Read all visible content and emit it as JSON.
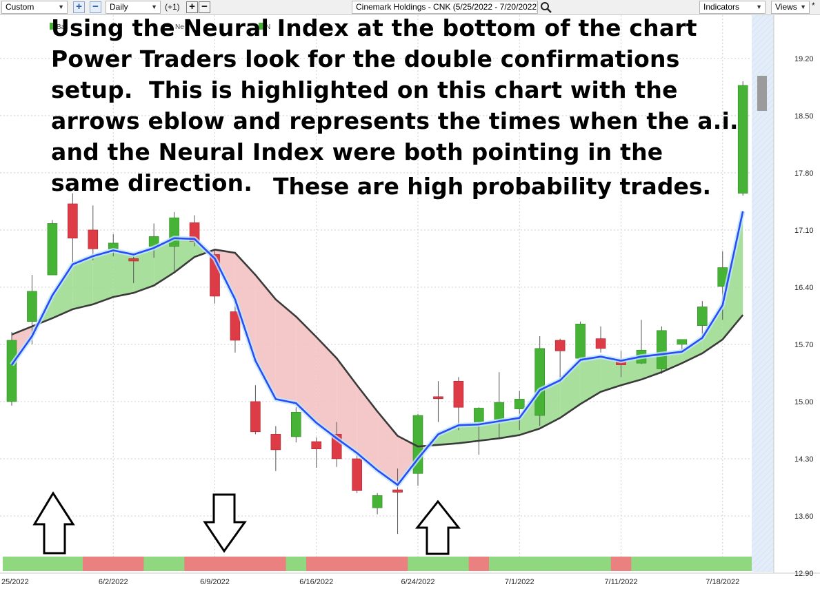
{
  "toolbar": {
    "range_value": "Custom",
    "interval_value": "Daily",
    "shift_label": "(+1)",
    "symbol_field": "Cinemark Holdings - CNK (5/25/2022 - 7/20/2022)",
    "indicators_label": "Indicators",
    "views_label": "Views",
    "views_marker": "*"
  },
  "annotation": {
    "main_text": "Using the Neural Index at the bottom of the chart\nPower Traders look for the double confirmations\nsetup.  This is highlighted on this chart with the\narrows eblow and represents the times when the a.i.\nand the Neural Index were both pointing in the\nsame direction.",
    "probability_text": "These are high probability trades."
  },
  "legend_fragments": [
    "Ba",
    "Ne",
    "N"
  ],
  "colors": {
    "up_candle": "#46b336",
    "down_candle": "#dd3b46",
    "predicted_line": "#2a4cf5",
    "moving_average": "#3a3a3a",
    "bull_fill": "#9fdb92",
    "bear_fill": "#f3c2c2",
    "neural_up": "#8fd87f",
    "neural_down": "#ea8080",
    "right_panel": "#e3edf9"
  },
  "icons": [
    "search-icon",
    "plus-icon",
    "minus-icon",
    "up-arrow-icon",
    "down-arrow-icon"
  ],
  "chart_data": {
    "type": "candlestick",
    "symbol": "CNK",
    "ylim": [
      12.9,
      19.55
    ],
    "y_ticks": [
      "19.20",
      "18.50",
      "17.80",
      "17.10",
      "16.40",
      "15.70",
      "15.00",
      "14.30",
      "13.60",
      "12.90"
    ],
    "x_ticks": [
      "25/2022",
      "6/2/2022",
      "6/9/2022",
      "6/16/2022",
      "6/24/2022",
      "7/1/2022",
      "7/11/2022",
      "7/18/2022"
    ],
    "grid": true,
    "candles": [
      {
        "o": 15.0,
        "c": 15.75,
        "h": 15.85,
        "l": 14.95
      },
      {
        "o": 15.98,
        "c": 16.35,
        "h": 16.55,
        "l": 15.7
      },
      {
        "o": 16.55,
        "c": 17.18,
        "h": 17.22,
        "l": 16.55
      },
      {
        "o": 17.42,
        "c": 17.0,
        "h": 17.55,
        "l": 16.7
      },
      {
        "o": 17.1,
        "c": 16.87,
        "h": 17.4,
        "l": 16.73
      },
      {
        "o": 16.87,
        "c": 16.94,
        "h": 17.05,
        "l": 16.78
      },
      {
        "o": 16.75,
        "c": 16.72,
        "h": 16.8,
        "l": 16.45
      },
      {
        "o": 16.9,
        "c": 17.02,
        "h": 17.18,
        "l": 16.76
      },
      {
        "o": 16.9,
        "c": 17.25,
        "h": 17.32,
        "l": 16.6
      },
      {
        "o": 17.19,
        "c": 16.96,
        "h": 17.28,
        "l": 16.9
      },
      {
        "o": 16.8,
        "c": 16.29,
        "h": 16.85,
        "l": 16.2
      },
      {
        "o": 16.1,
        "c": 15.75,
        "h": 16.3,
        "l": 15.6
      },
      {
        "o": 15.0,
        "c": 14.63,
        "h": 15.2,
        "l": 14.6
      },
      {
        "o": 14.6,
        "c": 14.41,
        "h": 14.7,
        "l": 14.15
      },
      {
        "o": 14.57,
        "c": 14.87,
        "h": 14.93,
        "l": 14.5
      },
      {
        "o": 14.51,
        "c": 14.42,
        "h": 14.56,
        "l": 14.19
      },
      {
        "o": 14.6,
        "c": 14.3,
        "h": 14.75,
        "l": 14.2
      },
      {
        "o": 14.3,
        "c": 13.91,
        "h": 14.35,
        "l": 13.88
      },
      {
        "o": 13.7,
        "c": 13.85,
        "h": 13.88,
        "l": 13.62
      },
      {
        "o": 13.92,
        "c": 13.89,
        "h": 14.18,
        "l": 13.38
      },
      {
        "o": 14.12,
        "c": 14.83,
        "h": 14.85,
        "l": 13.97
      },
      {
        "o": 15.06,
        "c": 15.04,
        "h": 15.25,
        "l": 14.75
      },
      {
        "o": 15.25,
        "c": 14.93,
        "h": 15.3,
        "l": 14.65
      },
      {
        "o": 14.75,
        "c": 14.92,
        "h": 14.93,
        "l": 14.35
      },
      {
        "o": 14.78,
        "c": 14.99,
        "h": 15.36,
        "l": 14.56
      },
      {
        "o": 14.91,
        "c": 15.03,
        "h": 15.13,
        "l": 14.65
      },
      {
        "o": 14.83,
        "c": 15.65,
        "h": 15.8,
        "l": 14.7
      },
      {
        "o": 15.75,
        "c": 15.62,
        "h": 15.77,
        "l": 15.23
      },
      {
        "o": 15.53,
        "c": 15.95,
        "h": 15.98,
        "l": 15.48
      },
      {
        "o": 15.77,
        "c": 15.65,
        "h": 15.92,
        "l": 15.6
      },
      {
        "o": 15.49,
        "c": 15.45,
        "h": 15.62,
        "l": 15.3
      },
      {
        "o": 15.47,
        "c": 15.63,
        "h": 16.0,
        "l": 15.46
      },
      {
        "o": 15.4,
        "c": 15.87,
        "h": 15.92,
        "l": 15.34
      },
      {
        "o": 15.7,
        "c": 15.76,
        "h": 15.76,
        "l": 15.63
      },
      {
        "o": 15.93,
        "c": 16.16,
        "h": 16.23,
        "l": 15.75
      },
      {
        "o": 16.41,
        "c": 16.64,
        "h": 16.84,
        "l": 16.0
      },
      {
        "o": 17.55,
        "c": 18.87,
        "h": 18.92,
        "l": 17.52
      }
    ],
    "series": [
      {
        "name": "Predicted",
        "values": [
          15.45,
          15.8,
          16.3,
          16.68,
          16.78,
          16.85,
          16.8,
          16.88,
          17.0,
          16.99,
          16.75,
          16.25,
          15.5,
          15.03,
          14.98,
          14.74,
          14.55,
          14.37,
          14.16,
          13.98,
          14.3,
          14.6,
          14.71,
          14.72,
          14.76,
          14.8,
          15.14,
          15.26,
          15.51,
          15.55,
          15.5,
          15.55,
          15.58,
          15.61,
          15.78,
          16.18,
          17.33
        ]
      },
      {
        "name": "Moving Average",
        "values": [
          15.82,
          15.92,
          16.02,
          16.13,
          16.19,
          16.28,
          16.33,
          16.42,
          16.58,
          16.77,
          16.86,
          16.82,
          16.55,
          16.25,
          16.04,
          15.79,
          15.53,
          15.2,
          14.88,
          14.58,
          14.45,
          14.47,
          14.49,
          14.52,
          14.55,
          14.59,
          14.67,
          14.8,
          14.97,
          15.12,
          15.2,
          15.27,
          15.36,
          15.47,
          15.59,
          15.76,
          16.06
        ]
      }
    ],
    "neural_index": [
      "up",
      "up",
      "up",
      "up",
      "down",
      "down",
      "down",
      "up",
      "up",
      "down",
      "down",
      "down",
      "down",
      "down",
      "up",
      "down",
      "down",
      "down",
      "down",
      "down",
      "up",
      "up",
      "up",
      "down",
      "up",
      "up",
      "up",
      "up",
      "up",
      "up",
      "down",
      "up",
      "up",
      "up",
      "up",
      "up",
      "up"
    ]
  }
}
